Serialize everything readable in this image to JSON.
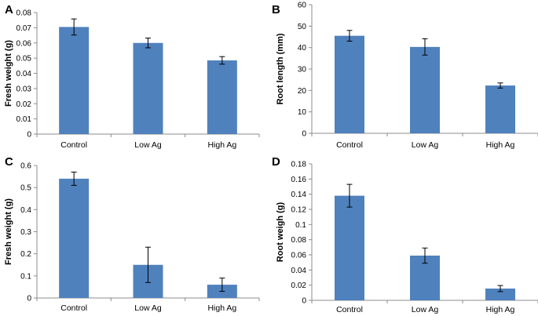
{
  "bar_color": "#4f81bd",
  "chart_data": [
    {
      "panel": "A",
      "type": "bar",
      "title": "",
      "xlabel": "",
      "ylabel": "Fresh weight (g)",
      "categories": [
        "Control",
        "Low Ag",
        "High Ag"
      ],
      "values": [
        0.0705,
        0.06,
        0.0485
      ],
      "errors": [
        0.0053,
        0.0032,
        0.0025
      ],
      "ylim": [
        0,
        0.08
      ],
      "ticks": [
        0,
        0.01,
        0.02,
        0.03,
        0.04,
        0.05,
        0.06,
        0.07,
        0.08
      ],
      "tick_labels": [
        "0",
        "0.01",
        "0.02",
        "0.03",
        "0.04",
        "0.05",
        "0.06",
        "0.07",
        "0.08"
      ],
      "grid": false
    },
    {
      "panel": "B",
      "type": "bar",
      "title": "",
      "xlabel": "",
      "ylabel": "Root length (mm)",
      "categories": [
        "Control",
        "Low Ag",
        "High Ag"
      ],
      "values": [
        45.5,
        40.3,
        22.3
      ],
      "errors": [
        2.5,
        3.8,
        1.2
      ],
      "ylim": [
        0,
        60
      ],
      "ticks": [
        0,
        10,
        20,
        30,
        40,
        50,
        60
      ],
      "tick_labels": [
        "0",
        "10",
        "20",
        "30",
        "40",
        "50",
        "60"
      ],
      "grid": false
    },
    {
      "panel": "C",
      "type": "bar",
      "title": "",
      "xlabel": "",
      "ylabel": "Fresh weight (g)",
      "categories": [
        "Control",
        "Low Ag",
        "High Ag"
      ],
      "values": [
        0.54,
        0.15,
        0.06
      ],
      "errors": [
        0.03,
        0.08,
        0.03
      ],
      "ylim": [
        0,
        0.6
      ],
      "ticks": [
        0,
        0.1,
        0.2,
        0.3,
        0.4,
        0.5,
        0.6
      ],
      "tick_labels": [
        "0",
        "0.1",
        "0.2",
        "0.3",
        "0.4",
        "0.5",
        "0.6"
      ],
      "grid": false
    },
    {
      "panel": "D",
      "type": "bar",
      "title": "",
      "xlabel": "",
      "ylabel": "Root weigh (g)",
      "categories": [
        "Control",
        "Low Ag",
        "High Ag"
      ],
      "values": [
        0.138,
        0.059,
        0.0155
      ],
      "errors": [
        0.015,
        0.01,
        0.004
      ],
      "ylim": [
        0,
        0.18
      ],
      "ticks": [
        0,
        0.02,
        0.04,
        0.06,
        0.08,
        0.1,
        0.12,
        0.14,
        0.16,
        0.18
      ],
      "tick_labels": [
        "0",
        "0.02",
        "0.04",
        "0.06",
        "0.08",
        "0.1",
        "0.12",
        "0.14",
        "0.16",
        "0.18"
      ],
      "grid": false
    }
  ]
}
